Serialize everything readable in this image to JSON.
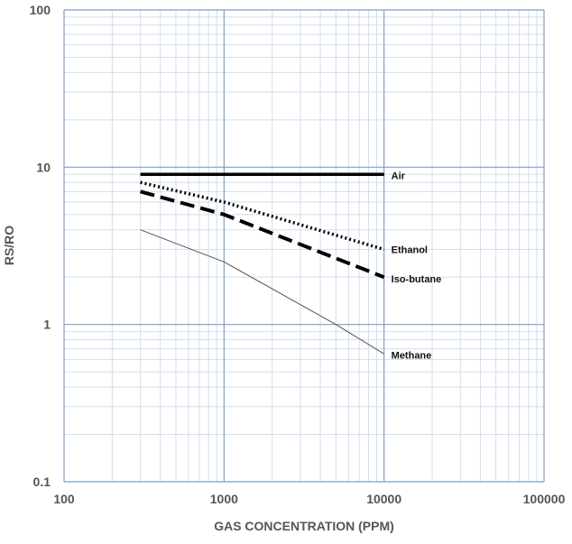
{
  "chart_data": {
    "type": "line",
    "title": "",
    "xlabel": "GAS CONCENTRATION (PPM)",
    "ylabel": "RS/RO",
    "xscale": "log",
    "yscale": "log",
    "xlim": [
      100,
      100000
    ],
    "ylim": [
      0.1,
      100
    ],
    "x_ticks": [
      100,
      1000,
      10000,
      100000
    ],
    "x_tick_labels": [
      "100",
      "1000",
      "10000",
      "100000"
    ],
    "y_ticks": [
      0.1,
      1,
      10,
      100
    ],
    "y_tick_labels": [
      "0.1",
      "1",
      "10",
      "100"
    ],
    "grid": true,
    "minor_grid": true,
    "legend": "none",
    "series": [
      {
        "name": "Air",
        "style": "solid-thick",
        "color": "#000000",
        "points": [
          [
            300,
            9.0
          ],
          [
            10000,
            9.0
          ]
        ]
      },
      {
        "name": "Ethanol",
        "style": "dotted",
        "color": "#000000",
        "points": [
          [
            300,
            8.0
          ],
          [
            1000,
            6.0
          ],
          [
            10000,
            3.0
          ]
        ]
      },
      {
        "name": "Iso-butane",
        "style": "dashed",
        "color": "#000000",
        "points": [
          [
            300,
            7.0
          ],
          [
            1000,
            5.0
          ],
          [
            10000,
            2.0
          ]
        ]
      },
      {
        "name": "Methane",
        "style": "solid-thin",
        "color": "#555555",
        "points": [
          [
            300,
            4.0
          ],
          [
            1000,
            2.5
          ],
          [
            5000,
            1.0
          ],
          [
            10000,
            0.65
          ]
        ]
      }
    ]
  },
  "colors": {
    "major_grid": "#7aa0cf",
    "minor_grid": "#d2deee",
    "text": "#555555"
  }
}
